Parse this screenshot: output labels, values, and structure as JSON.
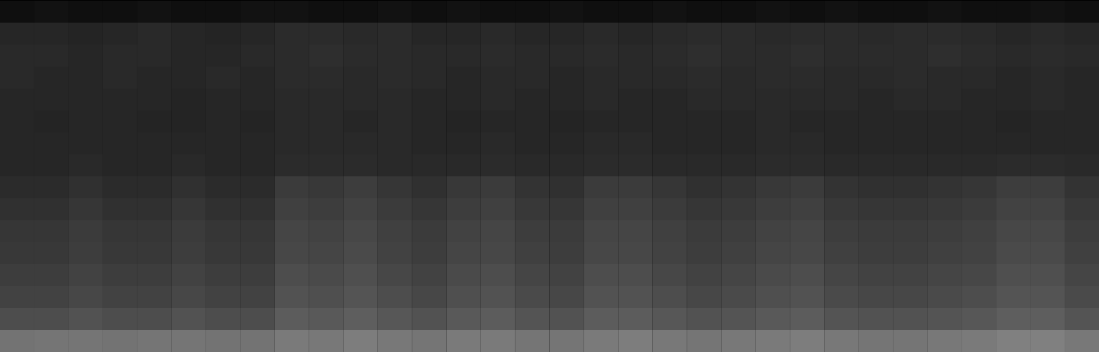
{
  "chart_data": {
    "type": "heatmap",
    "tick_labels": false,
    "zlim": [
      0,
      1
    ],
    "z": [
      [
        0.06,
        0.07,
        0.06,
        0.06,
        0.07,
        0.06,
        0.06,
        0.07,
        0.07,
        0.06,
        0.06,
        0.07,
        0.06,
        0.07,
        0.06,
        0.06,
        0.07,
        0.06,
        0.06,
        0.07,
        0.06,
        0.06,
        0.07,
        0.06,
        0.07,
        0.06,
        0.06,
        0.07,
        0.06,
        0.06,
        0.07,
        0.06
      ],
      [
        0.15,
        0.15,
        0.14,
        0.15,
        0.16,
        0.15,
        0.14,
        0.15,
        0.17,
        0.17,
        0.16,
        0.17,
        0.15,
        0.15,
        0.16,
        0.15,
        0.15,
        0.16,
        0.15,
        0.16,
        0.17,
        0.17,
        0.16,
        0.17,
        0.17,
        0.16,
        0.17,
        0.17,
        0.16,
        0.15,
        0.16,
        0.15
      ],
      [
        0.16,
        0.16,
        0.15,
        0.16,
        0.16,
        0.15,
        0.15,
        0.16,
        0.17,
        0.18,
        0.17,
        0.17,
        0.16,
        0.16,
        0.17,
        0.16,
        0.16,
        0.17,
        0.16,
        0.17,
        0.18,
        0.17,
        0.17,
        0.18,
        0.17,
        0.17,
        0.17,
        0.18,
        0.17,
        0.16,
        0.17,
        0.16
      ],
      [
        0.16,
        0.15,
        0.15,
        0.16,
        0.15,
        0.15,
        0.16,
        0.15,
        0.17,
        0.17,
        0.16,
        0.17,
        0.16,
        0.15,
        0.16,
        0.16,
        0.15,
        0.16,
        0.16,
        0.16,
        0.17,
        0.16,
        0.17,
        0.17,
        0.16,
        0.16,
        0.17,
        0.16,
        0.16,
        0.15,
        0.16,
        0.15
      ],
      [
        0.15,
        0.15,
        0.15,
        0.15,
        0.15,
        0.14,
        0.15,
        0.15,
        0.16,
        0.16,
        0.16,
        0.16,
        0.15,
        0.15,
        0.16,
        0.15,
        0.15,
        0.16,
        0.15,
        0.15,
        0.16,
        0.16,
        0.16,
        0.16,
        0.16,
        0.15,
        0.16,
        0.16,
        0.15,
        0.15,
        0.16,
        0.15
      ],
      [
        0.15,
        0.14,
        0.15,
        0.15,
        0.14,
        0.14,
        0.15,
        0.14,
        0.16,
        0.16,
        0.15,
        0.16,
        0.15,
        0.14,
        0.15,
        0.15,
        0.14,
        0.15,
        0.15,
        0.15,
        0.15,
        0.15,
        0.16,
        0.15,
        0.15,
        0.15,
        0.15,
        0.15,
        0.15,
        0.14,
        0.15,
        0.15
      ],
      [
        0.15,
        0.15,
        0.15,
        0.15,
        0.15,
        0.15,
        0.15,
        0.15,
        0.16,
        0.16,
        0.16,
        0.16,
        0.15,
        0.15,
        0.16,
        0.15,
        0.15,
        0.16,
        0.16,
        0.15,
        0.15,
        0.15,
        0.16,
        0.16,
        0.15,
        0.15,
        0.15,
        0.15,
        0.15,
        0.15,
        0.15,
        0.15
      ],
      [
        0.15,
        0.15,
        0.16,
        0.15,
        0.15,
        0.16,
        0.15,
        0.15,
        0.17,
        0.17,
        0.17,
        0.16,
        0.16,
        0.16,
        0.17,
        0.16,
        0.16,
        0.17,
        0.17,
        0.16,
        0.16,
        0.16,
        0.17,
        0.17,
        0.16,
        0.16,
        0.16,
        0.16,
        0.16,
        0.17,
        0.17,
        0.16
      ],
      [
        0.17,
        0.17,
        0.19,
        0.17,
        0.17,
        0.19,
        0.17,
        0.17,
        0.23,
        0.22,
        0.24,
        0.21,
        0.19,
        0.22,
        0.23,
        0.2,
        0.19,
        0.23,
        0.23,
        0.21,
        0.19,
        0.2,
        0.22,
        0.23,
        0.2,
        0.19,
        0.19,
        0.2,
        0.21,
        0.24,
        0.24,
        0.2
      ],
      [
        0.19,
        0.19,
        0.21,
        0.19,
        0.19,
        0.21,
        0.19,
        0.19,
        0.25,
        0.24,
        0.26,
        0.23,
        0.21,
        0.24,
        0.25,
        0.22,
        0.21,
        0.25,
        0.25,
        0.23,
        0.21,
        0.22,
        0.24,
        0.25,
        0.22,
        0.21,
        0.21,
        0.22,
        0.23,
        0.26,
        0.26,
        0.22
      ],
      [
        0.21,
        0.21,
        0.23,
        0.21,
        0.21,
        0.23,
        0.21,
        0.21,
        0.27,
        0.26,
        0.28,
        0.25,
        0.23,
        0.26,
        0.27,
        0.24,
        0.23,
        0.27,
        0.27,
        0.25,
        0.23,
        0.24,
        0.26,
        0.27,
        0.24,
        0.23,
        0.23,
        0.24,
        0.25,
        0.28,
        0.28,
        0.24
      ],
      [
        0.22,
        0.22,
        0.24,
        0.22,
        0.22,
        0.24,
        0.22,
        0.22,
        0.28,
        0.27,
        0.29,
        0.26,
        0.24,
        0.27,
        0.28,
        0.25,
        0.24,
        0.28,
        0.28,
        0.26,
        0.24,
        0.25,
        0.27,
        0.28,
        0.25,
        0.24,
        0.24,
        0.25,
        0.26,
        0.29,
        0.29,
        0.25
      ],
      [
        0.24,
        0.24,
        0.26,
        0.24,
        0.24,
        0.26,
        0.24,
        0.24,
        0.3,
        0.29,
        0.31,
        0.28,
        0.26,
        0.29,
        0.3,
        0.27,
        0.26,
        0.3,
        0.3,
        0.28,
        0.26,
        0.27,
        0.29,
        0.3,
        0.27,
        0.26,
        0.26,
        0.27,
        0.28,
        0.31,
        0.31,
        0.27
      ],
      [
        0.26,
        0.26,
        0.28,
        0.26,
        0.26,
        0.28,
        0.26,
        0.26,
        0.32,
        0.31,
        0.33,
        0.3,
        0.28,
        0.31,
        0.32,
        0.29,
        0.28,
        0.32,
        0.32,
        0.3,
        0.28,
        0.29,
        0.31,
        0.32,
        0.29,
        0.28,
        0.28,
        0.29,
        0.3,
        0.33,
        0.33,
        0.29
      ],
      [
        0.3,
        0.3,
        0.32,
        0.3,
        0.3,
        0.32,
        0.3,
        0.3,
        0.36,
        0.35,
        0.37,
        0.34,
        0.32,
        0.35,
        0.36,
        0.33,
        0.32,
        0.36,
        0.36,
        0.34,
        0.32,
        0.33,
        0.35,
        0.36,
        0.33,
        0.32,
        0.32,
        0.33,
        0.34,
        0.37,
        0.37,
        0.33
      ],
      [
        0.45,
        0.46,
        0.46,
        0.45,
        0.46,
        0.46,
        0.45,
        0.45,
        0.48,
        0.47,
        0.49,
        0.47,
        0.46,
        0.48,
        0.48,
        0.46,
        0.46,
        0.48,
        0.49,
        0.47,
        0.46,
        0.47,
        0.48,
        0.49,
        0.47,
        0.46,
        0.46,
        0.47,
        0.48,
        0.5,
        0.5,
        0.47
      ]
    ]
  }
}
